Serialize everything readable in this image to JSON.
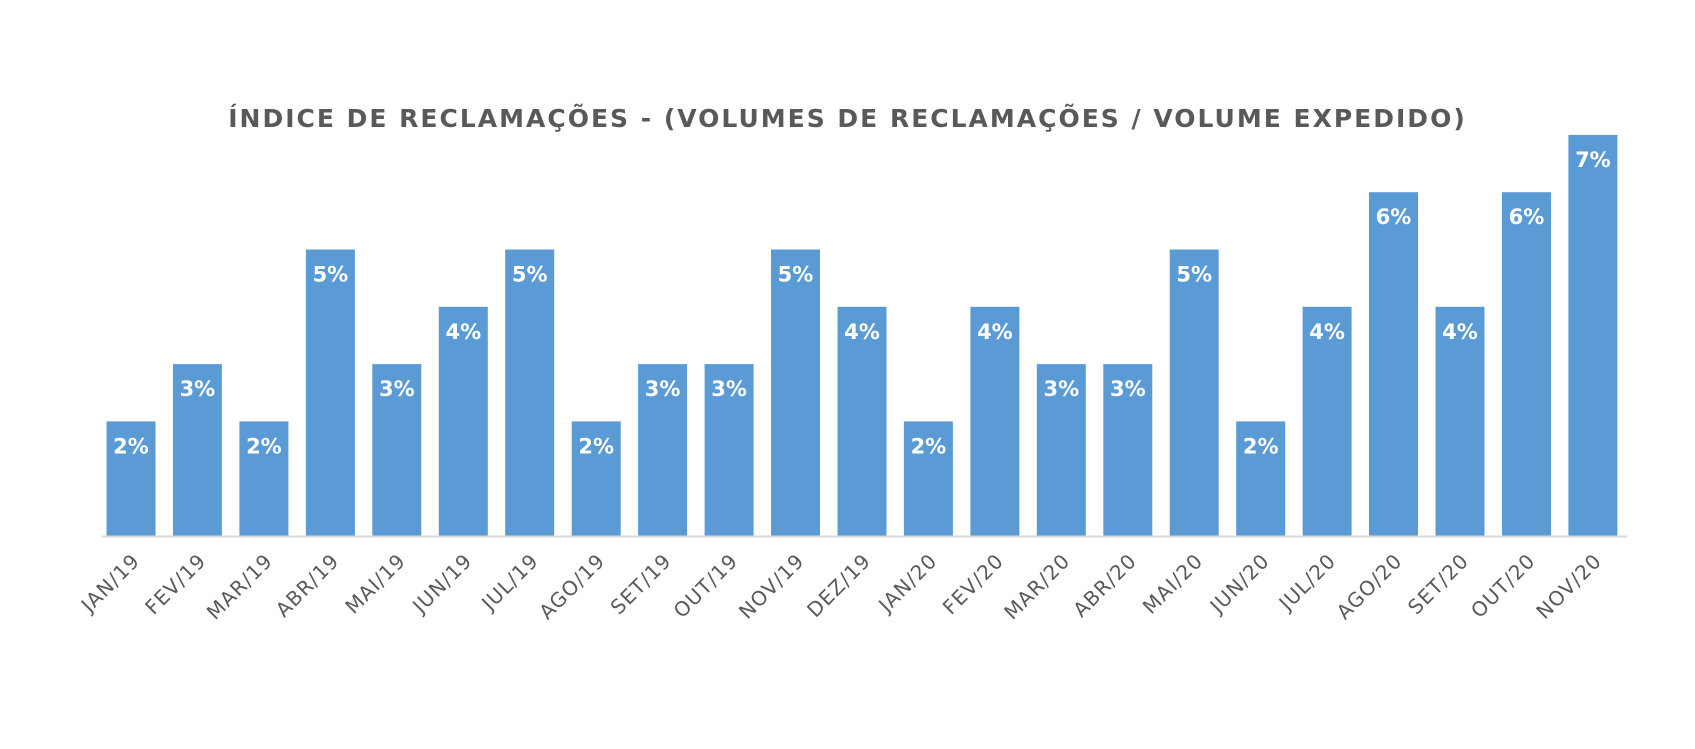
{
  "chart_data": {
    "type": "bar",
    "title": "ÍNDICE DE RECLAMAÇÕES - (VOLUMES DE RECLAMAÇÕES / VOLUME EXPEDIDO)",
    "categories": [
      "JAN/19",
      "FEV/19",
      "MAR/19",
      "ABR/19",
      "MAI/19",
      "JUN/19",
      "JUL/19",
      "AGO/19",
      "SET/19",
      "OUT/19",
      "NOV/19",
      "DEZ/19",
      "JAN/20",
      "FEV/20",
      "MAR/20",
      "ABR/20",
      "MAI/20",
      "JUN/20",
      "JUL/20",
      "AGO/20",
      "SET/20",
      "OUT/20",
      "NOV/20"
    ],
    "values": [
      2,
      3,
      2,
      5,
      3,
      4,
      5,
      2,
      3,
      3,
      5,
      4,
      2,
      4,
      3,
      3,
      5,
      2,
      4,
      6,
      4,
      6,
      7
    ],
    "data_labels": [
      "2%",
      "3%",
      "2%",
      "5%",
      "3%",
      "4%",
      "5%",
      "2%",
      "3%",
      "3%",
      "5%",
      "4%",
      "2%",
      "4%",
      "3%",
      "3%",
      "5%",
      "2%",
      "4%",
      "6%",
      "4%",
      "6%",
      "7%"
    ],
    "unit": "%",
    "ylim": [
      0,
      7
    ],
    "grid": false,
    "legend": "none",
    "bar_color": "#5b9bd5",
    "label_color": "#ffffff",
    "axis_color": "#d9d9d9",
    "tick_label_color": "#595959"
  }
}
